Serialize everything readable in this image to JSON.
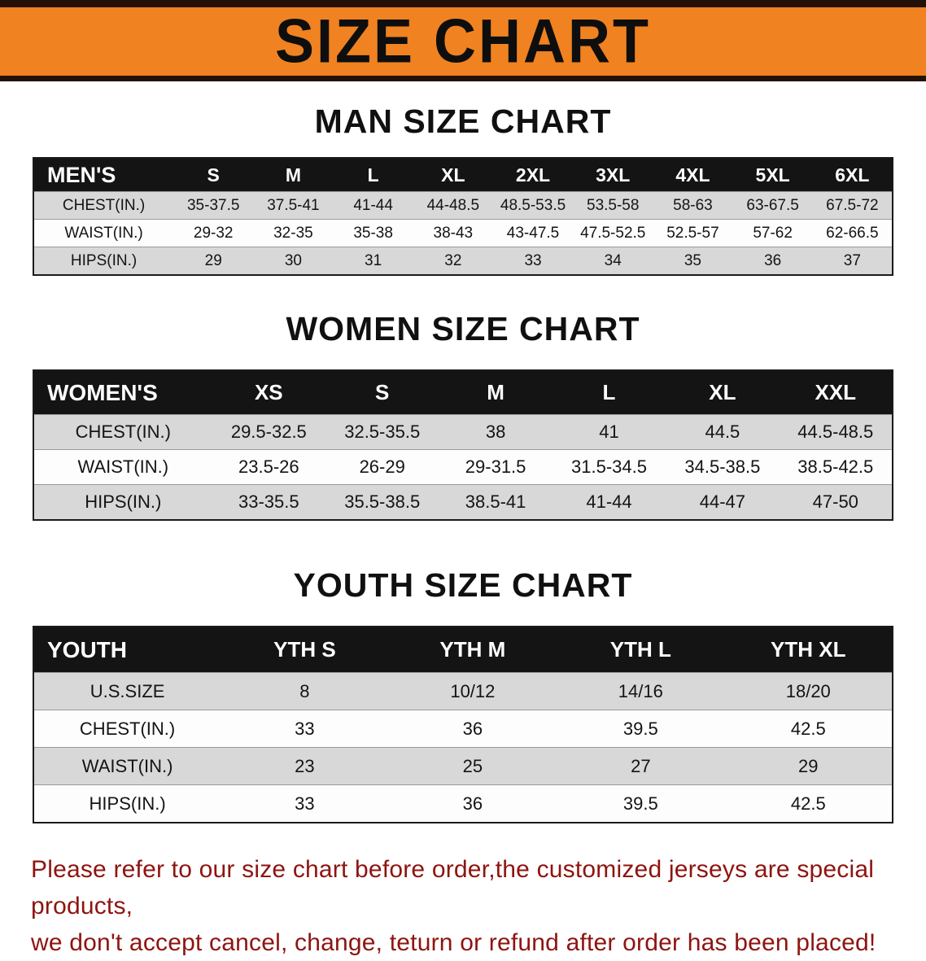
{
  "banner": {
    "title": "SIZE CHART"
  },
  "colors": {
    "banner_bg": "#f08221",
    "banner_trim": "#241106",
    "table_header_bg": "#141414",
    "row_stripe": "#d8d8d8",
    "footer_text": "#8e1410"
  },
  "sections": [
    {
      "heading": "MAN SIZE CHART",
      "table": {
        "header": [
          "MEN'S",
          "S",
          "M",
          "L",
          "XL",
          "2XL",
          "3XL",
          "4XL",
          "5XL",
          "6XL"
        ],
        "rows": [
          {
            "label": "CHEST(IN.)",
            "values": [
              "35-37.5",
              "37.5-41",
              "41-44",
              "44-48.5",
              "48.5-53.5",
              "53.5-58",
              "58-63",
              "63-67.5",
              "67.5-72"
            ]
          },
          {
            "label": "WAIST(IN.)",
            "values": [
              "29-32",
              "32-35",
              "35-38",
              "38-43",
              "43-47.5",
              "47.5-52.5",
              "52.5-57",
              "57-62",
              "62-66.5"
            ]
          },
          {
            "label": "HIPS(IN.)",
            "values": [
              "29",
              "30",
              "31",
              "32",
              "33",
              "34",
              "35",
              "36",
              "37"
            ]
          }
        ]
      }
    },
    {
      "heading": "WOMEN SIZE CHART",
      "table": {
        "header": [
          "WOMEN'S",
          "XS",
          "S",
          "M",
          "L",
          "XL",
          "XXL"
        ],
        "rows": [
          {
            "label": "CHEST(IN.)",
            "values": [
              "29.5-32.5",
              "32.5-35.5",
              "38",
              "41",
              "44.5",
              "44.5-48.5"
            ]
          },
          {
            "label": "WAIST(IN.)",
            "values": [
              "23.5-26",
              "26-29",
              "29-31.5",
              "31.5-34.5",
              "34.5-38.5",
              "38.5-42.5"
            ]
          },
          {
            "label": "HIPS(IN.)",
            "values": [
              "33-35.5",
              "35.5-38.5",
              "38.5-41",
              "41-44",
              "44-47",
              "47-50"
            ]
          }
        ]
      }
    },
    {
      "heading": "YOUTH SIZE CHART",
      "table": {
        "header": [
          "YOUTH",
          "YTH S",
          "YTH M",
          "YTH L",
          "YTH XL"
        ],
        "rows": [
          {
            "label": "U.S.SIZE",
            "values": [
              "8",
              "10/12",
              "14/16",
              "18/20"
            ]
          },
          {
            "label": "CHEST(IN.)",
            "values": [
              "33",
              "36",
              "39.5",
              "42.5"
            ]
          },
          {
            "label": "WAIST(IN.)",
            "values": [
              "23",
              "25",
              "27",
              "29"
            ]
          },
          {
            "label": "HIPS(IN.)",
            "values": [
              "33",
              "36",
              "39.5",
              "42.5"
            ]
          }
        ]
      }
    }
  ],
  "footer": {
    "line1": "Please refer to our size chart before order,the customized jerseys are special products,",
    "line2": "we don't accept cancel, change, teturn or refund after order has been placed!"
  }
}
